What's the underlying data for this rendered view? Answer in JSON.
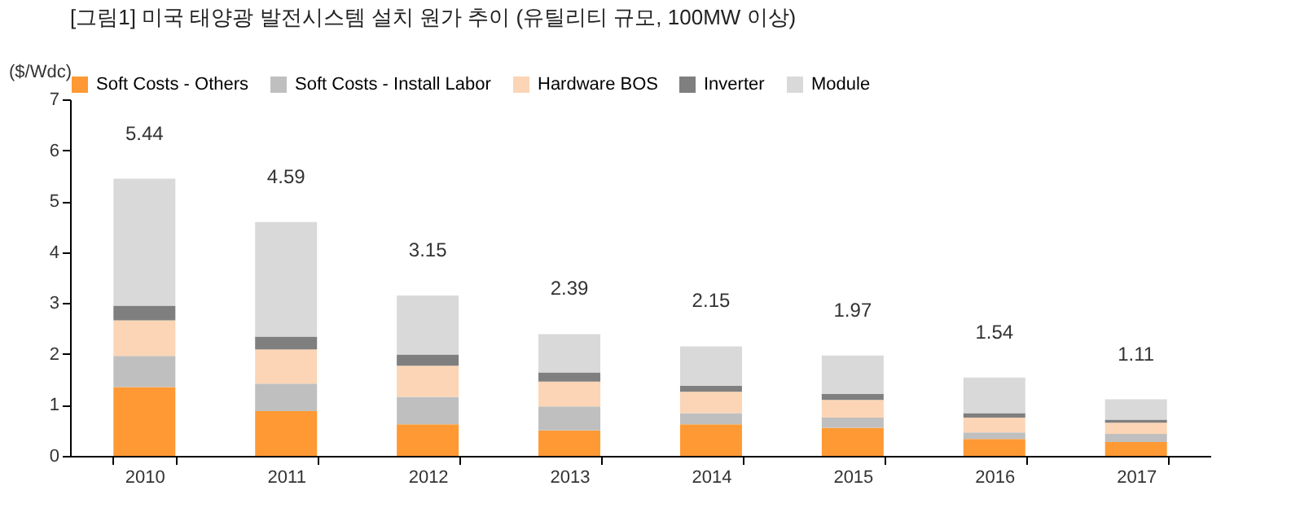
{
  "chart_data": {
    "type": "bar",
    "stacked": true,
    "title": "[그림1]   미국 태양광 발전시스템 설치 원가 추이 (유틸리티 규모, 100MW 이상)",
    "ylabel": "($/Wdc)",
    "categories": [
      "2010",
      "2011",
      "2012",
      "2013",
      "2014",
      "2015",
      "2016",
      "2017"
    ],
    "series": [
      {
        "name": "Soft Costs - Others",
        "color": "#ff9933",
        "values": [
          1.35,
          0.88,
          0.62,
          0.5,
          0.62,
          0.55,
          0.33,
          0.27
        ]
      },
      {
        "name": "Soft Costs - Install Labor",
        "color": "#bfbfbf",
        "values": [
          0.61,
          0.54,
          0.54,
          0.47,
          0.22,
          0.2,
          0.13,
          0.16
        ]
      },
      {
        "name": "Hardware BOS",
        "color": "#fbd5b5",
        "values": [
          0.7,
          0.67,
          0.61,
          0.49,
          0.42,
          0.35,
          0.29,
          0.22
        ]
      },
      {
        "name": "Inverter",
        "color": "#7f7f7f",
        "values": [
          0.29,
          0.25,
          0.22,
          0.18,
          0.12,
          0.12,
          0.09,
          0.06
        ]
      },
      {
        "name": "Module",
        "color": "#d9d9d9",
        "values": [
          2.49,
          2.25,
          1.16,
          0.75,
          0.77,
          0.75,
          0.7,
          0.4
        ]
      }
    ],
    "totals": [
      "5.44",
      "4.59",
      "3.15",
      "2.39",
      "2.15",
      "1.97",
      "1.54",
      "1.11"
    ],
    "ylim": [
      0,
      7
    ],
    "yticks": [
      0,
      1,
      2,
      3,
      4,
      5,
      6,
      7
    ],
    "grid": false,
    "legend": "top"
  }
}
